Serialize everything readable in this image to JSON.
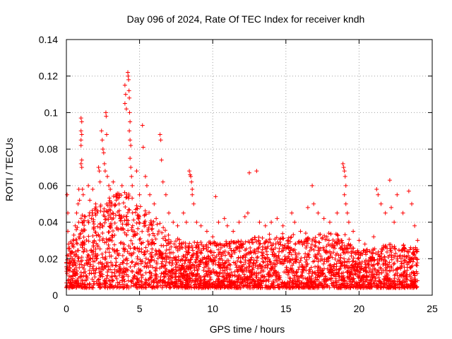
{
  "chart_data": {
    "type": "scatter",
    "title": "Day 096 of 2024, Rate Of TEC Index for receiver kndh",
    "xlabel": "GPS time / hours",
    "ylabel": "ROTI / TECUs",
    "xlim": [
      0,
      25
    ],
    "ylim": [
      0,
      0.14
    ],
    "x_ticks": [
      0,
      5,
      10,
      15,
      20,
      25
    ],
    "x_tick_labels": [
      "0",
      "5",
      "10",
      "15",
      "20",
      "25"
    ],
    "y_ticks": [
      0,
      0.02,
      0.04,
      0.06,
      0.08,
      0.1,
      0.12,
      0.14
    ],
    "y_tick_labels": [
      "0",
      "0.02",
      "0.04",
      "0.06",
      "0.08",
      "0.1",
      "0.12",
      "0.14"
    ],
    "grid": true,
    "marker": "+",
    "marker_color": "#ff0000",
    "series": [
      {
        "name": "ROTI",
        "note": "dense cloud of ~thousands of points; representative sample of visible points (x hours, y TECU/min)",
        "points": [
          [
            0.05,
            0.055
          ],
          [
            0.1,
            0.045
          ],
          [
            0.1,
            0.035
          ],
          [
            0.15,
            0.028
          ],
          [
            0.2,
            0.018
          ],
          [
            0.05,
            0.012
          ],
          [
            0.1,
            0.008
          ],
          [
            0.15,
            0.004
          ],
          [
            0.5,
            0.03
          ],
          [
            0.6,
            0.038
          ],
          [
            0.7,
            0.045
          ],
          [
            0.8,
            0.05
          ],
          [
            0.85,
            0.058
          ],
          [
            0.9,
            0.052
          ],
          [
            1.0,
            0.097
          ],
          [
            1.05,
            0.095
          ],
          [
            1.0,
            0.09
          ],
          [
            1.05,
            0.088
          ],
          [
            1.0,
            0.085
          ],
          [
            1.0,
            0.082
          ],
          [
            1.05,
            0.074
          ],
          [
            1.0,
            0.072
          ],
          [
            1.05,
            0.07
          ],
          [
            1.1,
            0.058
          ],
          [
            1.15,
            0.055
          ],
          [
            1.5,
            0.06
          ],
          [
            1.6,
            0.052
          ],
          [
            1.8,
            0.058
          ],
          [
            2.0,
            0.05
          ],
          [
            2.1,
            0.045
          ],
          [
            2.2,
            0.07
          ],
          [
            2.25,
            0.068
          ],
          [
            2.3,
            0.062
          ],
          [
            2.4,
            0.09
          ],
          [
            2.45,
            0.085
          ],
          [
            2.5,
            0.08
          ],
          [
            2.55,
            0.078
          ],
          [
            2.6,
            0.072
          ],
          [
            2.65,
            0.068
          ],
          [
            2.7,
            0.1
          ],
          [
            2.72,
            0.098
          ],
          [
            2.75,
            0.088
          ],
          [
            2.8,
            0.065
          ],
          [
            2.9,
            0.06
          ],
          [
            3.0,
            0.058
          ],
          [
            3.1,
            0.05
          ],
          [
            3.2,
            0.062
          ],
          [
            3.4,
            0.055
          ],
          [
            3.6,
            0.05
          ],
          [
            3.8,
            0.06
          ],
          [
            4.0,
            0.115
          ],
          [
            4.05,
            0.11
          ],
          [
            4.0,
            0.105
          ],
          [
            4.1,
            0.102
          ],
          [
            4.2,
            0.122
          ],
          [
            4.22,
            0.12
          ],
          [
            4.25,
            0.118
          ],
          [
            4.28,
            0.112
          ],
          [
            4.3,
            0.108
          ],
          [
            4.32,
            0.1
          ],
          [
            4.35,
            0.095
          ],
          [
            4.3,
            0.09
          ],
          [
            4.35,
            0.085
          ],
          [
            4.4,
            0.082
          ],
          [
            4.35,
            0.075
          ],
          [
            4.4,
            0.07
          ],
          [
            4.45,
            0.065
          ],
          [
            4.5,
            0.06
          ],
          [
            4.8,
            0.068
          ],
          [
            5.0,
            0.055
          ],
          [
            5.2,
            0.093
          ],
          [
            5.25,
            0.081
          ],
          [
            5.4,
            0.065
          ],
          [
            5.5,
            0.06
          ],
          [
            5.7,
            0.055
          ],
          [
            6.0,
            0.05
          ],
          [
            6.4,
            0.088
          ],
          [
            6.45,
            0.085
          ],
          [
            6.5,
            0.074
          ],
          [
            6.6,
            0.062
          ],
          [
            6.8,
            0.055
          ],
          [
            7.0,
            0.045
          ],
          [
            7.3,
            0.04
          ],
          [
            7.6,
            0.038
          ],
          [
            8.0,
            0.045
          ],
          [
            8.2,
            0.04
          ],
          [
            8.4,
            0.068
          ],
          [
            8.45,
            0.066
          ],
          [
            8.5,
            0.065
          ],
          [
            8.55,
            0.062
          ],
          [
            8.6,
            0.058
          ],
          [
            8.6,
            0.055
          ],
          [
            8.7,
            0.05
          ],
          [
            8.9,
            0.04
          ],
          [
            9.2,
            0.038
          ],
          [
            9.6,
            0.035
          ],
          [
            10.0,
            0.032
          ],
          [
            10.2,
            0.054
          ],
          [
            10.4,
            0.04
          ],
          [
            10.8,
            0.042
          ],
          [
            11.0,
            0.038
          ],
          [
            11.4,
            0.035
          ],
          [
            11.8,
            0.04
          ],
          [
            12.2,
            0.043
          ],
          [
            12.4,
            0.045
          ],
          [
            12.5,
            0.067
          ],
          [
            13.0,
            0.068
          ],
          [
            13.2,
            0.04
          ],
          [
            13.6,
            0.038
          ],
          [
            14.0,
            0.04
          ],
          [
            14.4,
            0.042
          ],
          [
            14.8,
            0.038
          ],
          [
            15.4,
            0.045
          ],
          [
            15.6,
            0.04
          ],
          [
            16.0,
            0.035
          ],
          [
            16.5,
            0.048
          ],
          [
            16.8,
            0.06
          ],
          [
            16.9,
            0.05
          ],
          [
            17.2,
            0.045
          ],
          [
            17.6,
            0.042
          ],
          [
            18.0,
            0.04
          ],
          [
            18.5,
            0.045
          ],
          [
            18.9,
            0.072
          ],
          [
            18.95,
            0.07
          ],
          [
            19.0,
            0.068
          ],
          [
            19.05,
            0.065
          ],
          [
            19.1,
            0.06
          ],
          [
            19.0,
            0.055
          ],
          [
            19.1,
            0.05
          ],
          [
            19.2,
            0.045
          ],
          [
            19.3,
            0.04
          ],
          [
            19.6,
            0.035
          ],
          [
            20.0,
            0.03
          ],
          [
            20.4,
            0.028
          ],
          [
            21.0,
            0.032
          ],
          [
            21.2,
            0.058
          ],
          [
            21.3,
            0.055
          ],
          [
            21.5,
            0.05
          ],
          [
            21.8,
            0.045
          ],
          [
            22.1,
            0.063
          ],
          [
            22.2,
            0.048
          ],
          [
            22.4,
            0.04
          ],
          [
            22.6,
            0.055
          ],
          [
            23.0,
            0.045
          ],
          [
            23.4,
            0.057
          ],
          [
            23.6,
            0.05
          ],
          [
            23.8,
            0.038
          ],
          [
            24.0,
            0.03
          ]
        ]
      }
    ]
  }
}
